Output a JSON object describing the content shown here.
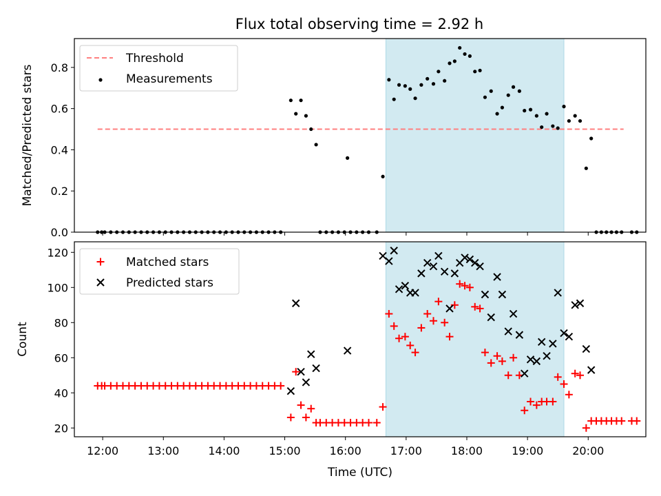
{
  "title": "Flux total observing time = 2.92 h",
  "colors": {
    "threshold": "#ff7f7f",
    "measurement": "#000000",
    "matched": "#ff0000",
    "predicted": "#000000",
    "observing_window": "#add8e6"
  },
  "chart_data": [
    {
      "type": "scatter",
      "panel": "top",
      "title": "Flux total observing time = 2.92 h",
      "xlabel": "",
      "ylabel": "Matched/Predicted stars",
      "xlim": [
        "11:32",
        "20:57"
      ],
      "ylim": [
        0,
        0.94
      ],
      "yticks": [
        0.0,
        0.2,
        0.4,
        0.6,
        0.8
      ],
      "legend_position": "top-left",
      "shaded_window": {
        "start": "16:40",
        "end": "19:36"
      },
      "series": [
        {
          "name": "Threshold",
          "kind": "dashed-line",
          "points": [
            [
              "11:55",
              0.5
            ],
            [
              "20:35",
              0.5
            ]
          ]
        },
        {
          "name": "Measurements",
          "kind": "dots",
          "points": [
            [
              "11:55",
              0
            ],
            [
              "11:59",
              0
            ],
            [
              "12:02",
              0
            ],
            [
              "12:08",
              0
            ],
            [
              "12:14",
              0
            ],
            [
              "12:20",
              0
            ],
            [
              "12:26",
              0
            ],
            [
              "12:32",
              0
            ],
            [
              "12:38",
              0
            ],
            [
              "12:44",
              0
            ],
            [
              "12:50",
              0
            ],
            [
              "12:56",
              0
            ],
            [
              "13:02",
              0
            ],
            [
              "13:08",
              0
            ],
            [
              "13:14",
              0
            ],
            [
              "13:20",
              0
            ],
            [
              "13:26",
              0
            ],
            [
              "13:32",
              0
            ],
            [
              "13:38",
              0
            ],
            [
              "13:44",
              0
            ],
            [
              "13:50",
              0
            ],
            [
              "13:56",
              0
            ],
            [
              "14:02",
              0
            ],
            [
              "14:08",
              0
            ],
            [
              "14:14",
              0
            ],
            [
              "14:20",
              0
            ],
            [
              "14:26",
              0
            ],
            [
              "14:32",
              0
            ],
            [
              "14:38",
              0
            ],
            [
              "14:44",
              0
            ],
            [
              "14:50",
              0
            ],
            [
              "14:56",
              0
            ],
            [
              "15:06",
              0.64
            ],
            [
              "15:11",
              0.575
            ],
            [
              "15:16",
              0.64
            ],
            [
              "15:21",
              0.565
            ],
            [
              "15:26",
              0.5
            ],
            [
              "15:31",
              0.425
            ],
            [
              "15:35",
              0
            ],
            [
              "15:41",
              0
            ],
            [
              "15:47",
              0
            ],
            [
              "15:53",
              0
            ],
            [
              "15:59",
              0
            ],
            [
              "16:05",
              0
            ],
            [
              "16:11",
              0
            ],
            [
              "16:17",
              0
            ],
            [
              "16:23",
              0
            ],
            [
              "16:31",
              0
            ],
            [
              "16:02",
              0.36
            ],
            [
              "16:37",
              0.27
            ],
            [
              "16:43",
              0.74
            ],
            [
              "16:48",
              0.645
            ],
            [
              "16:53",
              0.715
            ],
            [
              "16:59",
              0.71
            ],
            [
              "17:04",
              0.695
            ],
            [
              "17:09",
              0.65
            ],
            [
              "17:15",
              0.715
            ],
            [
              "17:21",
              0.745
            ],
            [
              "17:27",
              0.72
            ],
            [
              "17:32",
              0.78
            ],
            [
              "17:38",
              0.735
            ],
            [
              "17:43",
              0.82
            ],
            [
              "17:48",
              0.83
            ],
            [
              "17:53",
              0.895
            ],
            [
              "17:58",
              0.865
            ],
            [
              "18:03",
              0.855
            ],
            [
              "18:08",
              0.78
            ],
            [
              "18:13",
              0.785
            ],
            [
              "18:18",
              0.655
            ],
            [
              "18:24",
              0.685
            ],
            [
              "18:30",
              0.575
            ],
            [
              "18:35",
              0.605
            ],
            [
              "18:41",
              0.665
            ],
            [
              "18:46",
              0.705
            ],
            [
              "18:52",
              0.685
            ],
            [
              "18:57",
              0.59
            ],
            [
              "19:03",
              0.595
            ],
            [
              "19:09",
              0.565
            ],
            [
              "19:14",
              0.51
            ],
            [
              "19:19",
              0.575
            ],
            [
              "19:25",
              0.515
            ],
            [
              "19:30",
              0.505
            ],
            [
              "19:36",
              0.61
            ],
            [
              "19:41",
              0.54
            ],
            [
              "19:47",
              0.565
            ],
            [
              "19:52",
              0.54
            ],
            [
              "19:58",
              0.31
            ],
            [
              "20:03",
              0.455
            ],
            [
              "20:08",
              0
            ],
            [
              "20:13",
              0
            ],
            [
              "20:18",
              0
            ],
            [
              "20:23",
              0
            ],
            [
              "20:28",
              0
            ],
            [
              "20:33",
              0
            ],
            [
              "20:43",
              0
            ],
            [
              "20:48",
              0
            ]
          ]
        }
      ]
    },
    {
      "type": "scatter",
      "panel": "bottom",
      "xlabel": "Time (UTC)",
      "ylabel": "Count",
      "xlim": [
        "11:32",
        "20:57"
      ],
      "ylim": [
        15,
        126
      ],
      "yticks": [
        20,
        40,
        60,
        80,
        100,
        120
      ],
      "xticks": [
        "12:00",
        "13:00",
        "14:00",
        "15:00",
        "16:00",
        "17:00",
        "18:00",
        "19:00",
        "20:00"
      ],
      "legend_position": "top-left",
      "shaded_window": {
        "start": "16:40",
        "end": "19:36"
      },
      "series": [
        {
          "name": "Matched stars",
          "marker": "plus",
          "points": [
            [
              "11:55",
              44
            ],
            [
              "11:59",
              44
            ],
            [
              "12:02",
              44
            ],
            [
              "12:08",
              44
            ],
            [
              "12:14",
              44
            ],
            [
              "12:20",
              44
            ],
            [
              "12:26",
              44
            ],
            [
              "12:32",
              44
            ],
            [
              "12:38",
              44
            ],
            [
              "12:44",
              44
            ],
            [
              "12:50",
              44
            ],
            [
              "12:56",
              44
            ],
            [
              "13:02",
              44
            ],
            [
              "13:08",
              44
            ],
            [
              "13:14",
              44
            ],
            [
              "13:20",
              44
            ],
            [
              "13:26",
              44
            ],
            [
              "13:32",
              44
            ],
            [
              "13:38",
              44
            ],
            [
              "13:44",
              44
            ],
            [
              "13:50",
              44
            ],
            [
              "13:56",
              44
            ],
            [
              "14:02",
              44
            ],
            [
              "14:08",
              44
            ],
            [
              "14:14",
              44
            ],
            [
              "14:20",
              44
            ],
            [
              "14:26",
              44
            ],
            [
              "14:32",
              44
            ],
            [
              "14:38",
              44
            ],
            [
              "14:44",
              44
            ],
            [
              "14:50",
              44
            ],
            [
              "14:56",
              44
            ],
            [
              "15:06",
              26
            ],
            [
              "15:11",
              52
            ],
            [
              "15:16",
              33
            ],
            [
              "15:21",
              26
            ],
            [
              "15:26",
              31
            ],
            [
              "15:31",
              23
            ],
            [
              "15:35",
              23
            ],
            [
              "15:41",
              23
            ],
            [
              "15:47",
              23
            ],
            [
              "15:53",
              23
            ],
            [
              "15:59",
              23
            ],
            [
              "16:05",
              23
            ],
            [
              "16:11",
              23
            ],
            [
              "16:17",
              23
            ],
            [
              "16:23",
              23
            ],
            [
              "16:31",
              23
            ],
            [
              "16:37",
              32
            ],
            [
              "16:43",
              85
            ],
            [
              "16:48",
              78
            ],
            [
              "16:53",
              71
            ],
            [
              "16:59",
              72
            ],
            [
              "17:04",
              67
            ],
            [
              "17:09",
              63
            ],
            [
              "17:15",
              77
            ],
            [
              "17:21",
              85
            ],
            [
              "17:27",
              81
            ],
            [
              "17:32",
              92
            ],
            [
              "17:38",
              80
            ],
            [
              "17:43",
              72
            ],
            [
              "17:48",
              90
            ],
            [
              "17:53",
              102
            ],
            [
              "17:58",
              101
            ],
            [
              "18:03",
              100
            ],
            [
              "18:08",
              89
            ],
            [
              "18:13",
              88
            ],
            [
              "18:18",
              63
            ],
            [
              "18:24",
              57
            ],
            [
              "18:30",
              61
            ],
            [
              "18:35",
              58
            ],
            [
              "18:41",
              50
            ],
            [
              "18:46",
              60
            ],
            [
              "18:52",
              50
            ],
            [
              "18:57",
              30
            ],
            [
              "19:03",
              35
            ],
            [
              "19:09",
              33
            ],
            [
              "19:14",
              35
            ],
            [
              "19:19",
              35
            ],
            [
              "19:25",
              35
            ],
            [
              "19:30",
              49
            ],
            [
              "19:36",
              45
            ],
            [
              "19:41",
              39
            ],
            [
              "19:47",
              51
            ],
            [
              "19:52",
              50
            ],
            [
              "19:58",
              20
            ],
            [
              "20:03",
              24
            ],
            [
              "20:08",
              24
            ],
            [
              "20:13",
              24
            ],
            [
              "20:18",
              24
            ],
            [
              "20:23",
              24
            ],
            [
              "20:28",
              24
            ],
            [
              "20:33",
              24
            ],
            [
              "20:43",
              24
            ],
            [
              "20:48",
              24
            ]
          ]
        },
        {
          "name": "Predicted stars",
          "marker": "x",
          "points": [
            [
              "15:06",
              41
            ],
            [
              "15:11",
              91
            ],
            [
              "15:16",
              52
            ],
            [
              "15:21",
              46
            ],
            [
              "15:26",
              62
            ],
            [
              "15:31",
              54
            ],
            [
              "16:02",
              64
            ],
            [
              "16:37",
              118
            ],
            [
              "16:43",
              115
            ],
            [
              "16:48",
              121
            ],
            [
              "16:53",
              99
            ],
            [
              "16:59",
              101
            ],
            [
              "17:04",
              97
            ],
            [
              "17:09",
              97
            ],
            [
              "17:15",
              108
            ],
            [
              "17:21",
              114
            ],
            [
              "17:27",
              112
            ],
            [
              "17:32",
              118
            ],
            [
              "17:38",
              109
            ],
            [
              "17:43",
              88
            ],
            [
              "17:48",
              108
            ],
            [
              "17:53",
              114
            ],
            [
              "17:58",
              117
            ],
            [
              "18:03",
              116
            ],
            [
              "18:08",
              114
            ],
            [
              "18:13",
              112
            ],
            [
              "18:18",
              96
            ],
            [
              "18:24",
              83
            ],
            [
              "18:30",
              106
            ],
            [
              "18:35",
              96
            ],
            [
              "18:41",
              75
            ],
            [
              "18:46",
              85
            ],
            [
              "18:52",
              73
            ],
            [
              "18:57",
              51
            ],
            [
              "19:03",
              59
            ],
            [
              "19:09",
              58
            ],
            [
              "19:14",
              69
            ],
            [
              "19:19",
              61
            ],
            [
              "19:25",
              68
            ],
            [
              "19:30",
              97
            ],
            [
              "19:36",
              74
            ],
            [
              "19:41",
              72
            ],
            [
              "19:47",
              90
            ],
            [
              "19:52",
              91
            ],
            [
              "19:58",
              65
            ],
            [
              "20:03",
              53
            ]
          ]
        }
      ]
    }
  ]
}
